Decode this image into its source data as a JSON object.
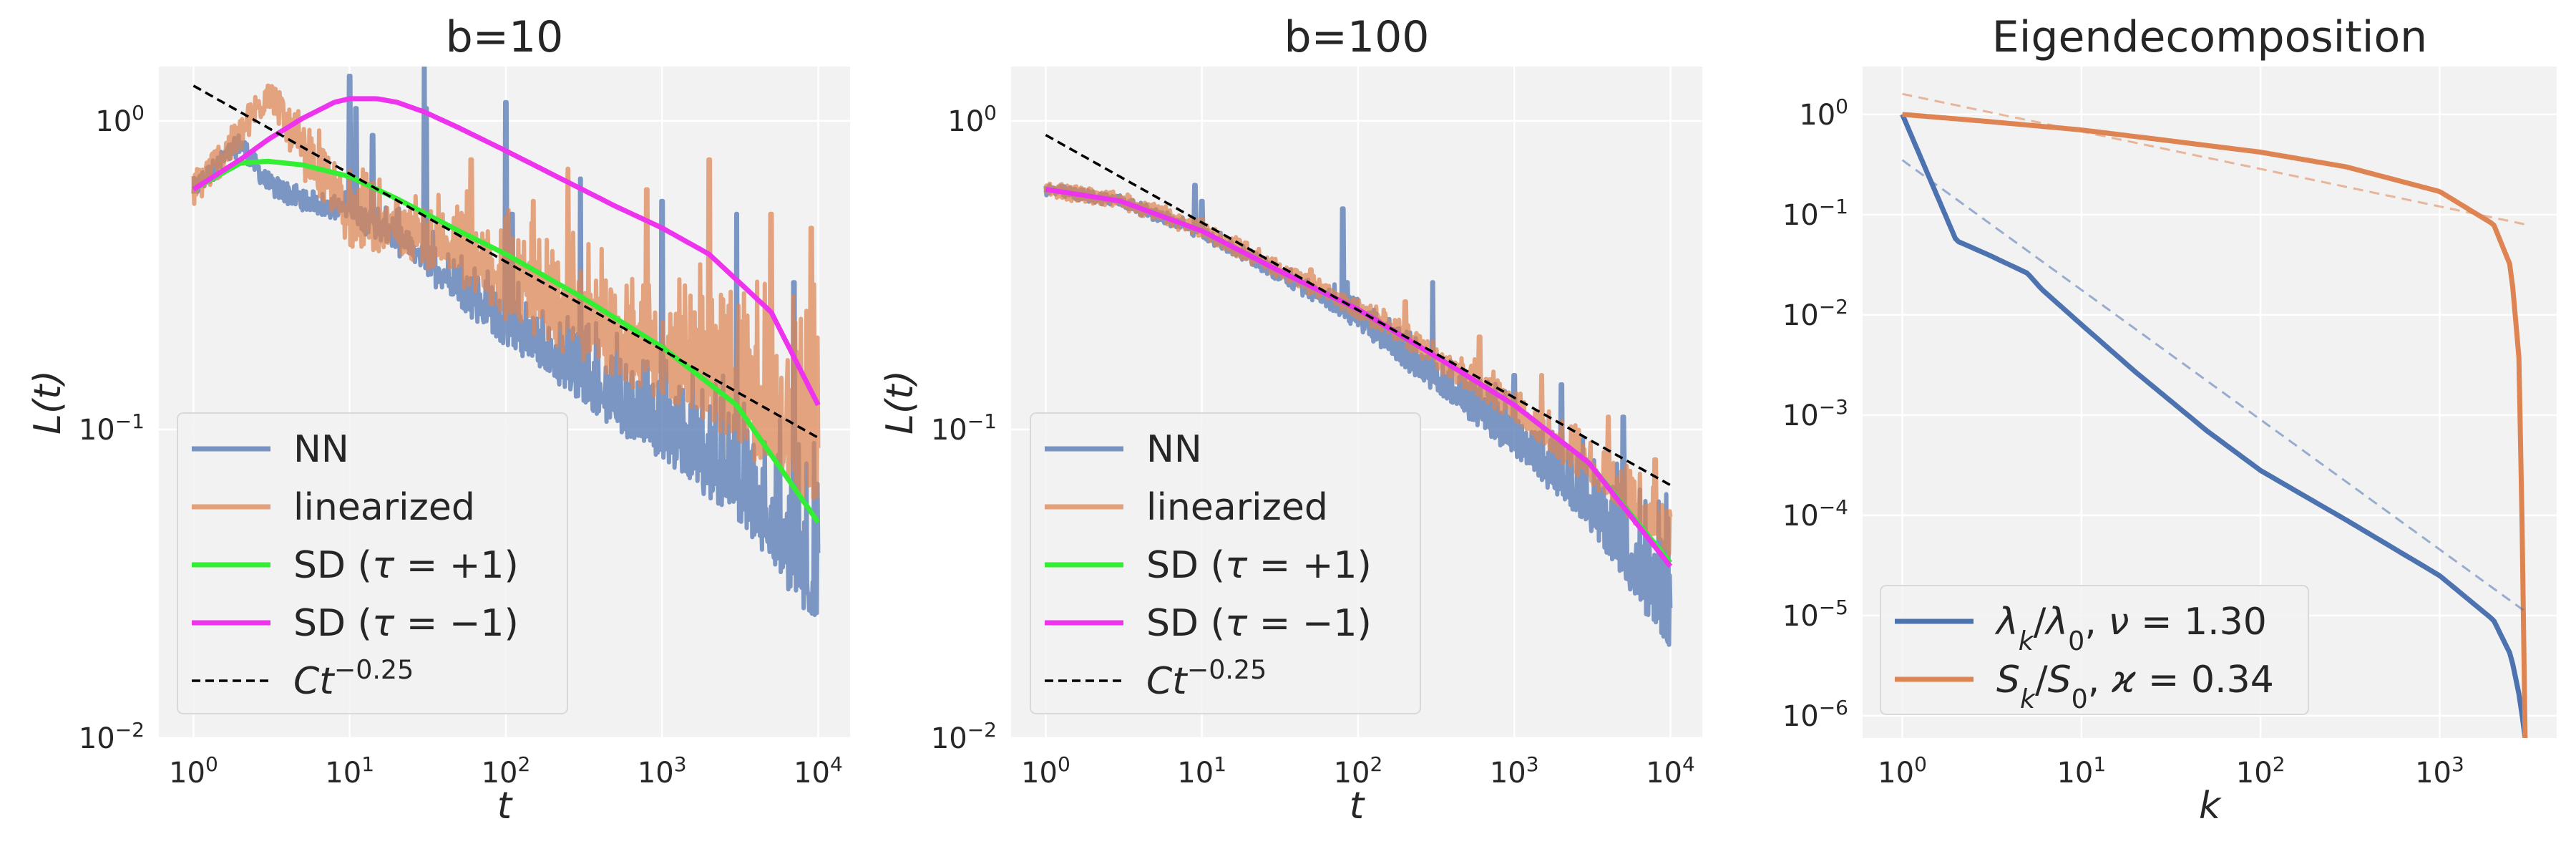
{
  "figure": {
    "panels": [
      "b=10",
      "b=100",
      "Eigendecomposition"
    ]
  },
  "colors": {
    "NN": "#4c72b0",
    "linearized": "#dd8452",
    "sd_plus": "#33ee33",
    "sd_minus": "#ee33ee",
    "ref": "#000000",
    "eigen_lambda": "#4c72b0",
    "eigen_S": "#dd8452",
    "background": "#f2f2f2",
    "grid": "#ffffff"
  },
  "chart_data": [
    {
      "type": "line",
      "title": "b=10",
      "xlabel": "t",
      "ylabel": "L(t)",
      "xscale": "log",
      "yscale": "log",
      "xlim": [
        0.6,
        16000
      ],
      "ylim": [
        0.01,
        1.5
      ],
      "xticks": [
        {
          "v": 1,
          "b": "10",
          "e": "0"
        },
        {
          "v": 10,
          "b": "10",
          "e": "1"
        },
        {
          "v": 100,
          "b": "10",
          "e": "2"
        },
        {
          "v": 1000,
          "b": "10",
          "e": "3"
        },
        {
          "v": 10000,
          "b": "10",
          "e": "4"
        }
      ],
      "yticks": [
        {
          "v": 1,
          "b": "10",
          "e": "0"
        },
        {
          "v": 0.1,
          "b": "10",
          "e": "−1"
        },
        {
          "v": 0.01,
          "b": "10",
          "e": "−2"
        }
      ],
      "legend_position": "lower-left",
      "series": [
        {
          "name": "NN",
          "key": "NN",
          "style": "noisy",
          "noise": 0.07,
          "spikes": [
            [
              2,
              0.85
            ],
            [
              3,
              0.68
            ],
            [
              10,
              1.4
            ],
            [
              11,
              1.1
            ],
            [
              14,
              0.9
            ],
            [
              30,
              1.6
            ],
            [
              31,
              1.1
            ],
            [
              100,
              1.15
            ],
            [
              110,
              0.5
            ],
            [
              300,
              0.65
            ],
            [
              1000,
              0.55
            ],
            [
              3000,
              0.5
            ],
            [
              7000,
              0.3
            ]
          ],
          "x": [
            1,
            2,
            3,
            5,
            10,
            20,
            50,
            100,
            300,
            1000,
            3000,
            10000
          ],
          "upper": [
            0.6,
            0.85,
            0.62,
            0.58,
            0.55,
            0.5,
            0.38,
            0.32,
            0.24,
            0.18,
            0.14,
            0.09
          ],
          "lower": [
            0.6,
            0.85,
            0.62,
            0.55,
            0.5,
            0.4,
            0.27,
            0.2,
            0.13,
            0.085,
            0.055,
            0.024
          ]
        },
        {
          "name": "linearized",
          "key": "linearized",
          "style": "noisy",
          "noise": 0.12,
          "spikes": [
            [
              3,
              1.3
            ],
            [
              6,
              0.65
            ],
            [
              20,
              0.55
            ],
            [
              60,
              0.75
            ],
            [
              150,
              0.55
            ],
            [
              250,
              0.7
            ],
            [
              800,
              0.6
            ],
            [
              2000,
              0.75
            ],
            [
              5000,
              0.5
            ],
            [
              9000,
              0.45
            ]
          ],
          "x": [
            1,
            2,
            3,
            5,
            10,
            20,
            50,
            100,
            300,
            1000,
            3000,
            10000
          ],
          "upper": [
            0.6,
            0.9,
            1.3,
            0.95,
            0.75,
            0.55,
            0.55,
            0.5,
            0.42,
            0.38,
            0.36,
            0.3
          ],
          "lower": [
            0.6,
            0.9,
            1.25,
            0.75,
            0.45,
            0.4,
            0.33,
            0.26,
            0.19,
            0.14,
            0.1,
            0.06
          ]
        },
        {
          "name": "SD (τ = +1)",
          "key": "sd_plus",
          "style": "smooth",
          "x": [
            1,
            2,
            3,
            5,
            10,
            20,
            50,
            100,
            300,
            1000,
            3000,
            10000
          ],
          "y": [
            0.6,
            0.73,
            0.74,
            0.72,
            0.66,
            0.56,
            0.44,
            0.37,
            0.27,
            0.185,
            0.12,
            0.05
          ]
        },
        {
          "name": "SD (τ = −1)",
          "key": "sd_minus",
          "style": "smooth",
          "x": [
            1,
            2,
            3,
            5,
            8,
            10,
            15,
            20,
            30,
            50,
            100,
            200,
            500,
            1000,
            2000,
            5000,
            10000
          ],
          "y": [
            0.6,
            0.75,
            0.87,
            1.02,
            1.15,
            1.18,
            1.18,
            1.15,
            1.07,
            0.95,
            0.8,
            0.67,
            0.53,
            0.45,
            0.37,
            0.24,
            0.12
          ]
        },
        {
          "name": "Ct^−0.25",
          "key": "ref",
          "style": "dashed",
          "x": [
            1,
            10000
          ],
          "y": [
            1.3,
            0.094
          ]
        }
      ],
      "legend": [
        {
          "key": "NN",
          "parts": [
            {
              "t": "NN"
            }
          ]
        },
        {
          "key": "linearized",
          "parts": [
            {
              "t": "linearized"
            }
          ]
        },
        {
          "key": "sd_plus",
          "parts": [
            {
              "t": "SD ("
            },
            {
              "t": "τ",
              "m": 1
            },
            {
              "t": " = +1)"
            }
          ]
        },
        {
          "key": "sd_minus",
          "parts": [
            {
              "t": "SD ("
            },
            {
              "t": "τ",
              "m": 1
            },
            {
              "t": " = −1)"
            }
          ]
        },
        {
          "key": "ref",
          "dashed": true,
          "parts": [
            {
              "t": "Ct",
              "m": 1
            },
            {
              "t": "−0.25",
              "s": "sup"
            }
          ]
        }
      ]
    },
    {
      "type": "line",
      "title": "b=100",
      "xlabel": "t",
      "ylabel": "L(t)",
      "xscale": "log",
      "yscale": "log",
      "xlim": [
        0.6,
        16000
      ],
      "ylim": [
        0.01,
        1.5
      ],
      "xticks": [
        {
          "v": 1,
          "b": "10",
          "e": "0"
        },
        {
          "v": 10,
          "b": "10",
          "e": "1"
        },
        {
          "v": 100,
          "b": "10",
          "e": "2"
        },
        {
          "v": 1000,
          "b": "10",
          "e": "3"
        },
        {
          "v": 10000,
          "b": "10",
          "e": "4"
        }
      ],
      "yticks": [
        {
          "v": 1,
          "b": "10",
          "e": "0"
        },
        {
          "v": 0.1,
          "b": "10",
          "e": "−1"
        },
        {
          "v": 0.01,
          "b": "10",
          "e": "−2"
        }
      ],
      "legend_position": "lower-left",
      "series": [
        {
          "name": "NN",
          "key": "NN",
          "style": "noisy",
          "noise": 0.04,
          "spikes": [
            [
              9,
              0.62
            ],
            [
              10,
              0.55
            ],
            [
              80,
              0.52
            ],
            [
              85,
              0.3
            ],
            [
              300,
              0.3
            ],
            [
              1000,
              0.15
            ],
            [
              2000,
              0.14
            ],
            [
              5000,
              0.11
            ]
          ],
          "x": [
            1,
            3,
            10,
            30,
            100,
            300,
            1000,
            3000,
            10000
          ],
          "upper": [
            0.6,
            0.55,
            0.45,
            0.34,
            0.27,
            0.19,
            0.13,
            0.1,
            0.06
          ],
          "lower": [
            0.6,
            0.55,
            0.43,
            0.32,
            0.22,
            0.14,
            0.085,
            0.05,
            0.02
          ]
        },
        {
          "name": "linearized",
          "key": "linearized",
          "style": "noisy",
          "noise": 0.05,
          "spikes": [
            [
              10,
              0.48
            ],
            [
              50,
              0.33
            ],
            [
              200,
              0.26
            ],
            [
              600,
              0.2
            ],
            [
              1500,
              0.15
            ],
            [
              4000,
              0.11
            ],
            [
              8000,
              0.08
            ]
          ],
          "x": [
            1,
            3,
            10,
            30,
            100,
            300,
            1000,
            3000,
            10000
          ],
          "upper": [
            0.6,
            0.56,
            0.46,
            0.35,
            0.27,
            0.2,
            0.14,
            0.1,
            0.065
          ],
          "lower": [
            0.6,
            0.55,
            0.44,
            0.33,
            0.24,
            0.17,
            0.11,
            0.07,
            0.04
          ]
        },
        {
          "name": "SD (τ = +1)",
          "key": "sd_plus",
          "style": "smooth",
          "x": [
            1,
            3,
            10,
            30,
            100,
            300,
            1000,
            3000,
            10000
          ],
          "y": [
            0.6,
            0.55,
            0.44,
            0.33,
            0.245,
            0.175,
            0.12,
            0.078,
            0.037
          ]
        },
        {
          "name": "SD (τ = −1)",
          "key": "sd_minus",
          "style": "smooth",
          "x": [
            1,
            3,
            10,
            30,
            100,
            300,
            1000,
            3000,
            10000
          ],
          "y": [
            0.6,
            0.55,
            0.44,
            0.33,
            0.245,
            0.175,
            0.12,
            0.078,
            0.036
          ]
        },
        {
          "name": "Ct^−0.25",
          "key": "ref",
          "style": "dashed",
          "x": [
            1,
            10000
          ],
          "y": [
            0.9,
            0.066
          ]
        }
      ],
      "legend": [
        {
          "key": "NN",
          "parts": [
            {
              "t": "NN"
            }
          ]
        },
        {
          "key": "linearized",
          "parts": [
            {
              "t": "linearized"
            }
          ]
        },
        {
          "key": "sd_plus",
          "parts": [
            {
              "t": "SD ("
            },
            {
              "t": "τ",
              "m": 1
            },
            {
              "t": " = +1)"
            }
          ]
        },
        {
          "key": "sd_minus",
          "parts": [
            {
              "t": "SD ("
            },
            {
              "t": "τ",
              "m": 1
            },
            {
              "t": " = −1)"
            }
          ]
        },
        {
          "key": "ref",
          "dashed": true,
          "parts": [
            {
              "t": "Ct",
              "m": 1
            },
            {
              "t": "−0.25",
              "s": "sup"
            }
          ]
        }
      ]
    },
    {
      "type": "line",
      "title": "Eigendecomposition",
      "xlabel": "k",
      "ylabel": "",
      "xscale": "log",
      "yscale": "log",
      "xlim": [
        0.6,
        4500
      ],
      "ylim": [
        6e-07,
        3
      ],
      "xticks": [
        {
          "v": 1,
          "b": "10",
          "e": "0"
        },
        {
          "v": 10,
          "b": "10",
          "e": "1"
        },
        {
          "v": 100,
          "b": "10",
          "e": "2"
        },
        {
          "v": 1000,
          "b": "10",
          "e": "3"
        }
      ],
      "yticks": [
        {
          "v": 1,
          "b": "10",
          "e": "0"
        },
        {
          "v": 0.1,
          "b": "10",
          "e": "−1"
        },
        {
          "v": 0.01,
          "b": "10",
          "e": "−2"
        },
        {
          "v": 0.001,
          "b": "10",
          "e": "−3"
        },
        {
          "v": 0.0001,
          "b": "10",
          "e": "−4"
        },
        {
          "v": 1e-05,
          "b": "10",
          "e": "−5"
        },
        {
          "v": 1e-06,
          "b": "10",
          "e": "−6"
        }
      ],
      "legend_position": "lower-left",
      "series": [
        {
          "name": "λk/λ0, ν=1.30",
          "key": "eigen_lambda",
          "style": "solid",
          "x": [
            1,
            2,
            3,
            5,
            6,
            10,
            20,
            50,
            100,
            300,
            1000,
            2000,
            2500,
            2800,
            3000
          ],
          "y": [
            1,
            0.055,
            0.04,
            0.026,
            0.018,
            0.008,
            0.0027,
            0.0007,
            0.00028,
            9e-05,
            2.5e-05,
            9e-06,
            4e-06,
            1.5e-06,
            6e-07
          ]
        },
        {
          "name": "S_k/S_0, ϰ=0.34",
          "key": "eigen_S",
          "style": "solid",
          "x": [
            1,
            3,
            10,
            30,
            100,
            300,
            1000,
            2000,
            2500,
            2800,
            3000
          ],
          "y": [
            1,
            0.85,
            0.7,
            0.55,
            0.42,
            0.3,
            0.17,
            0.08,
            0.03,
            0.003,
            6e-07
          ]
        },
        {
          "name": "fit λ",
          "key": "eigen_lambda",
          "style": "thin-dashed",
          "x": [
            1,
            3000
          ],
          "y": [
            0.35,
            1.1e-05
          ]
        },
        {
          "name": "fit S",
          "key": "eigen_S",
          "style": "thin-dashed",
          "x": [
            1,
            3000
          ],
          "y": [
            1.6,
            0.08
          ]
        }
      ],
      "legend": [
        {
          "key": "eigen_lambda",
          "parts": [
            {
              "t": "λ",
              "m": 1
            },
            {
              "t": "k",
              "m": 1,
              "s": "sub"
            },
            {
              "t": "/"
            },
            {
              "t": "λ",
              "m": 1
            },
            {
              "t": "0",
              "s": "sub"
            },
            {
              "t": ", "
            },
            {
              "t": "ν",
              "m": 1
            },
            {
              "t": " = 1.30"
            }
          ]
        },
        {
          "key": "eigen_S",
          "parts": [
            {
              "t": "S",
              "m": 1
            },
            {
              "t": "k",
              "m": 1,
              "s": "sub"
            },
            {
              "t": "/"
            },
            {
              "t": "S",
              "m": 1
            },
            {
              "t": "0",
              "s": "sub"
            },
            {
              "t": ", "
            },
            {
              "t": "ϰ",
              "m": 1
            },
            {
              "t": " = 0.34"
            }
          ]
        }
      ]
    }
  ]
}
